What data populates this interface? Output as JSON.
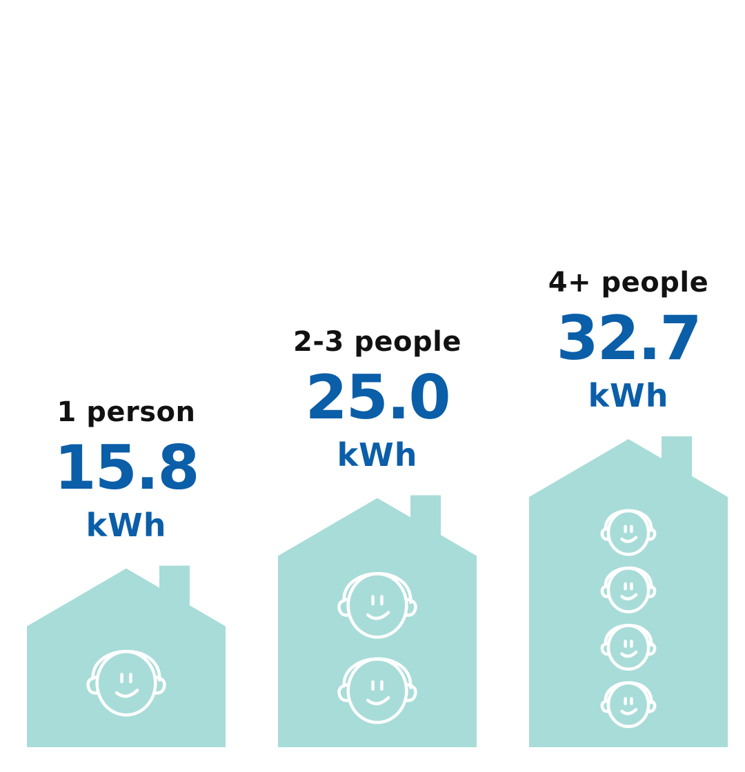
{
  "chart_data": {
    "type": "bar",
    "categories": [
      "1 person",
      "2-3 people",
      "4+ people"
    ],
    "values": [
      15.8,
      25.0,
      32.7
    ],
    "value_labels": [
      "15.8",
      "25.0",
      "32.7"
    ],
    "unit": "kWh",
    "people_icons": [
      1,
      2,
      4
    ],
    "colors": {
      "house": "#a8dcd8",
      "value_text": "#0b5ea8",
      "category_text": "#111111",
      "icon_stroke": "#ffffff"
    }
  }
}
